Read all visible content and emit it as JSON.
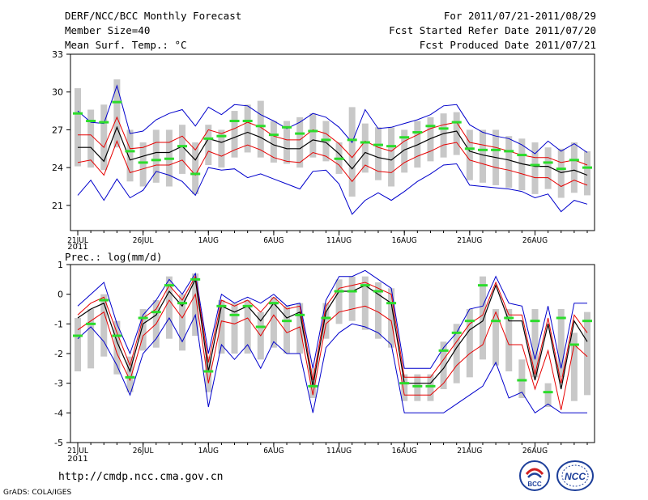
{
  "header": {
    "title": "DERF/NCC/BCC Monthly Forecast",
    "member_size": "Member Size=40",
    "variable": "Mean Surf. Temp.: °C",
    "period": "For 2011/07/21-2011/08/29",
    "refer_date": "Fcst Started Refer Date 2011/07/20",
    "produced_date": "Fcst Produced Date 2011/07/21"
  },
  "footer": {
    "url": "http://cmdp.ncc.cma.gov.cn",
    "credit": "GrADS: COLA/IGES",
    "logo_bcc": "BCC",
    "logo_ncc": "NCC"
  },
  "colors": {
    "box": "#c8c8c8",
    "median": "#2bdc2b",
    "mean": "#000000",
    "sigma": "#e60000",
    "envelope": "#0000cc"
  },
  "chart_data": [
    {
      "type": "line",
      "title": "Mean Surf. Temp.: °C",
      "ylim": [
        19,
        33
      ],
      "yticks": [
        21,
        24,
        27,
        30,
        33
      ],
      "x_tick_days": [
        1,
        6,
        11,
        16,
        21,
        26,
        31,
        36
      ],
      "x_tick_labels": [
        "21JUL",
        "26JUL",
        "1AUG",
        "6AUG",
        "11AUG",
        "16AUG",
        "21AUG",
        "26AUG"
      ],
      "x_year_label": "2011",
      "days": [
        1,
        2,
        3,
        4,
        5,
        6,
        7,
        8,
        9,
        10,
        11,
        12,
        13,
        14,
        15,
        16,
        17,
        18,
        19,
        20,
        21,
        22,
        23,
        24,
        25,
        26,
        27,
        28,
        29,
        30,
        31,
        32,
        33,
        34,
        35,
        36,
        37,
        38,
        39,
        40
      ],
      "series": [
        {
          "name": "mean",
          "values": [
            25.6,
            25.6,
            24.5,
            27.2,
            24.6,
            24.9,
            25.2,
            25.2,
            25.7,
            24.6,
            26.3,
            26.0,
            26.4,
            26.8,
            26.4,
            25.8,
            25.5,
            25.5,
            26.2,
            26.0,
            25.1,
            23.9,
            25.2,
            24.8,
            24.6,
            25.4,
            25.8,
            26.3,
            26.7,
            26.9,
            25.3,
            25.0,
            24.8,
            24.6,
            24.3,
            24.1,
            24.1,
            23.6,
            23.8,
            23.4
          ]
        },
        {
          "name": "upper_sigma",
          "values": [
            26.6,
            26.6,
            25.6,
            28.0,
            25.5,
            25.6,
            26.0,
            26.0,
            26.5,
            25.4,
            27.0,
            26.7,
            27.1,
            27.6,
            27.2,
            26.5,
            26.2,
            26.2,
            27.0,
            26.7,
            25.9,
            24.8,
            26.1,
            25.6,
            25.3,
            26.1,
            26.6,
            27.1,
            27.4,
            27.6,
            26.0,
            25.8,
            25.6,
            25.3,
            25.0,
            24.8,
            24.8,
            24.4,
            24.6,
            24.2
          ]
        },
        {
          "name": "lower_sigma",
          "values": [
            24.4,
            24.6,
            23.4,
            26.1,
            23.6,
            23.9,
            24.2,
            24.2,
            24.6,
            23.4,
            25.3,
            24.9,
            25.4,
            25.8,
            25.4,
            24.8,
            24.5,
            24.4,
            25.2,
            24.9,
            24.2,
            22.9,
            24.2,
            23.7,
            23.6,
            24.4,
            24.9,
            25.3,
            25.8,
            26.0,
            24.6,
            24.3,
            24.0,
            23.8,
            23.5,
            23.2,
            23.2,
            22.5,
            23.0,
            22.6
          ]
        },
        {
          "name": "max_envelope",
          "values": [
            28.5,
            27.6,
            27.5,
            30.5,
            26.7,
            26.9,
            27.8,
            28.3,
            28.6,
            27.3,
            28.8,
            28.2,
            29.0,
            28.9,
            28.2,
            27.7,
            27.1,
            27.6,
            28.3,
            28.0,
            27.2,
            26.0,
            28.6,
            27.1,
            27.2,
            27.5,
            27.8,
            28.2,
            28.9,
            29.0,
            27.4,
            26.8,
            26.5,
            26.3,
            25.8,
            25.1,
            26.1,
            25.3,
            25.9,
            25.2
          ]
        },
        {
          "name": "min_envelope",
          "values": [
            21.8,
            23.0,
            21.4,
            23.1,
            21.6,
            22.2,
            23.7,
            23.4,
            22.9,
            21.8,
            24.0,
            23.8,
            23.9,
            23.2,
            23.5,
            23.1,
            22.7,
            22.3,
            23.7,
            23.8,
            22.7,
            20.3,
            21.4,
            22.0,
            21.4,
            22.1,
            22.9,
            23.5,
            24.2,
            24.3,
            22.6,
            22.5,
            22.4,
            22.3,
            22.1,
            21.6,
            21.9,
            20.5,
            21.4,
            21.1
          ]
        },
        {
          "name": "median",
          "values": [
            28.3,
            27.7,
            27.6,
            29.2,
            25.3,
            24.4,
            24.6,
            24.7,
            25.7,
            23.5,
            26.3,
            26.5,
            27.7,
            27.7,
            27.3,
            26.6,
            27.2,
            26.7,
            26.9,
            26.2,
            24.7,
            26.2,
            26.0,
            25.8,
            25.7,
            26.4,
            26.8,
            27.3,
            27.1,
            27.6,
            25.5,
            25.4,
            25.4,
            25.3,
            25.0,
            24.2,
            24.4,
            23.9,
            24.6,
            24.0
          ]
        },
        {
          "name": "box_top",
          "values": [
            30.3,
            28.6,
            29.0,
            31.0,
            27.0,
            26.0,
            27.0,
            27.0,
            27.4,
            26.0,
            27.4,
            27.0,
            28.5,
            29.0,
            29.3,
            27.7,
            27.7,
            28.0,
            28.3,
            27.7,
            26.0,
            28.8,
            27.5,
            27.2,
            27.2,
            27.0,
            27.7,
            28.0,
            28.3,
            28.4,
            27.0,
            27.0,
            27.0,
            26.5,
            26.3,
            26.0,
            25.6,
            25.5,
            26.0,
            25.3
          ]
        },
        {
          "name": "box_bottom",
          "values": [
            24.1,
            24.0,
            23.8,
            25.6,
            22.9,
            22.5,
            22.8,
            22.5,
            23.5,
            21.9,
            24.2,
            24.0,
            24.8,
            25.2,
            24.8,
            24.4,
            24.3,
            24.0,
            24.8,
            24.5,
            23.5,
            21.7,
            23.6,
            23.0,
            22.5,
            23.6,
            24.0,
            24.5,
            24.8,
            25.0,
            23.0,
            22.8,
            22.6,
            22.4,
            22.2,
            21.9,
            22.3,
            21.6,
            22.0,
            21.8
          ]
        }
      ]
    },
    {
      "type": "line",
      "title": "Prec.: log(mm/d)",
      "ylim": [
        -5,
        1
      ],
      "yticks": [
        -5,
        -4,
        -3,
        -2,
        -1,
        0,
        1
      ],
      "x_tick_days": [
        1,
        6,
        11,
        16,
        21,
        26,
        31,
        36
      ],
      "x_tick_labels": [
        "21JUL",
        "26JUL",
        "1AUG",
        "6AUG",
        "11AUG",
        "16AUG",
        "21AUG",
        "26AUG"
      ],
      "x_year_label": "2011",
      "days": [
        1,
        2,
        3,
        4,
        5,
        6,
        7,
        8,
        9,
        10,
        11,
        12,
        13,
        14,
        15,
        16,
        17,
        18,
        19,
        20,
        21,
        22,
        23,
        24,
        25,
        26,
        27,
        28,
        29,
        30,
        31,
        32,
        33,
        34,
        35,
        36,
        37,
        38,
        39,
        40
      ],
      "series": [
        {
          "name": "mean",
          "values": [
            -0.8,
            -0.5,
            -0.3,
            -1.6,
            -2.6,
            -1.0,
            -0.7,
            0.1,
            -0.4,
            0.5,
            -2.6,
            -0.4,
            -0.6,
            -0.4,
            -0.9,
            -0.3,
            -0.8,
            -0.6,
            -3.1,
            -0.6,
            0.1,
            0.1,
            0.3,
            0.0,
            -0.3,
            -3.0,
            -3.0,
            -3.0,
            -2.5,
            -1.8,
            -1.2,
            -0.9,
            0.3,
            -0.9,
            -0.9,
            -2.9,
            -1.0,
            -3.2,
            -0.9,
            -1.6
          ]
        },
        {
          "name": "upper_sigma",
          "values": [
            -0.7,
            -0.3,
            -0.1,
            -1.3,
            -2.4,
            -0.8,
            -0.5,
            0.3,
            -0.2,
            0.6,
            -2.3,
            -0.2,
            -0.4,
            -0.2,
            -0.6,
            -0.1,
            -0.5,
            -0.4,
            -2.9,
            -0.4,
            0.2,
            0.3,
            0.4,
            0.2,
            0.0,
            -2.8,
            -2.8,
            -2.8,
            -2.2,
            -1.6,
            -1.0,
            -0.7,
            0.4,
            -0.7,
            -0.7,
            -2.7,
            -0.8,
            -3.0,
            -0.7,
            -1.3
          ]
        },
        {
          "name": "lower_sigma",
          "values": [
            -1.2,
            -0.9,
            -0.6,
            -2.0,
            -2.9,
            -1.4,
            -1.0,
            -0.2,
            -0.8,
            0.0,
            -3.0,
            -0.9,
            -1.0,
            -0.8,
            -1.4,
            -0.7,
            -1.3,
            -1.1,
            -3.4,
            -1.0,
            -0.6,
            -0.5,
            -0.4,
            -0.6,
            -0.9,
            -3.4,
            -3.4,
            -3.4,
            -3.0,
            -2.4,
            -2.0,
            -1.7,
            -0.6,
            -1.7,
            -1.7,
            -3.2,
            -1.9,
            -3.9,
            -1.7,
            -2.1
          ]
        },
        {
          "name": "max_envelope",
          "values": [
            -0.4,
            0.0,
            0.4,
            -1.0,
            -2.0,
            -0.7,
            -0.2,
            0.5,
            0.0,
            0.7,
            -2.0,
            0.0,
            -0.3,
            -0.1,
            -0.3,
            0.0,
            -0.4,
            -0.3,
            -2.5,
            -0.2,
            0.6,
            0.6,
            0.8,
            0.5,
            0.2,
            -2.5,
            -2.5,
            -2.5,
            -1.8,
            -1.3,
            -0.5,
            -0.4,
            0.6,
            -0.3,
            -0.4,
            -2.2,
            -0.4,
            -2.5,
            -0.3,
            -0.3
          ]
        },
        {
          "name": "min_envelope",
          "values": [
            -1.5,
            -1.1,
            -1.6,
            -2.4,
            -3.4,
            -2.0,
            -1.5,
            -0.8,
            -1.6,
            -0.7,
            -3.8,
            -1.7,
            -2.2,
            -1.7,
            -2.5,
            -1.6,
            -2.0,
            -2.0,
            -4.0,
            -1.8,
            -1.3,
            -1.0,
            -1.1,
            -1.3,
            -1.7,
            -4.0,
            -4.0,
            -4.0,
            -4.0,
            -3.7,
            -3.4,
            -3.1,
            -2.3,
            -3.5,
            -3.3,
            -4.0,
            -3.7,
            -4.0,
            -4.0,
            -4.0
          ]
        },
        {
          "name": "median",
          "values": [
            -1.4,
            -1.0,
            -0.2,
            -1.4,
            -2.8,
            -0.8,
            -0.6,
            0.3,
            -0.3,
            0.5,
            -2.6,
            -0.4,
            -0.7,
            -0.4,
            -1.1,
            -0.3,
            -0.9,
            -0.7,
            -3.1,
            -0.8,
            0.1,
            0.1,
            0.3,
            0.1,
            -0.3,
            -3.0,
            -3.1,
            -3.1,
            -1.9,
            -1.3,
            -0.9,
            0.3,
            -0.9,
            -0.8,
            -2.9,
            -0.9,
            -3.3,
            -0.8,
            -1.7,
            -0.9
          ]
        },
        {
          "name": "box_top",
          "values": [
            -0.8,
            -0.5,
            0.0,
            -0.9,
            -2.1,
            -0.5,
            -0.2,
            0.6,
            0.0,
            0.7,
            -2.1,
            -0.2,
            -0.3,
            -0.2,
            -0.6,
            -0.1,
            -0.4,
            -0.3,
            -2.5,
            -0.3,
            0.5,
            0.6,
            0.6,
            0.4,
            0.2,
            -2.7,
            -2.7,
            -2.7,
            -1.6,
            -1.0,
            -0.5,
            0.6,
            -0.5,
            -0.5,
            -2.2,
            -0.5,
            -3.0,
            -0.5,
            -1.3,
            -0.6
          ]
        },
        {
          "name": "box_bottom",
          "values": [
            -2.6,
            -2.5,
            -2.1,
            -2.7,
            -3.3,
            -1.9,
            -1.8,
            -1.5,
            -1.9,
            -1.4,
            -3.3,
            -2.0,
            -2.0,
            -2.0,
            -2.2,
            -1.8,
            -2.0,
            -2.0,
            -3.5,
            -1.5,
            -1.0,
            -0.9,
            -1.2,
            -1.5,
            -1.8,
            -3.6,
            -3.6,
            -3.6,
            -3.2,
            -3.0,
            -2.8,
            -2.2,
            -2.4,
            -2.6,
            -3.5,
            -2.8,
            -3.8,
            -2.8,
            -3.6,
            -3.4
          ]
        }
      ]
    }
  ]
}
